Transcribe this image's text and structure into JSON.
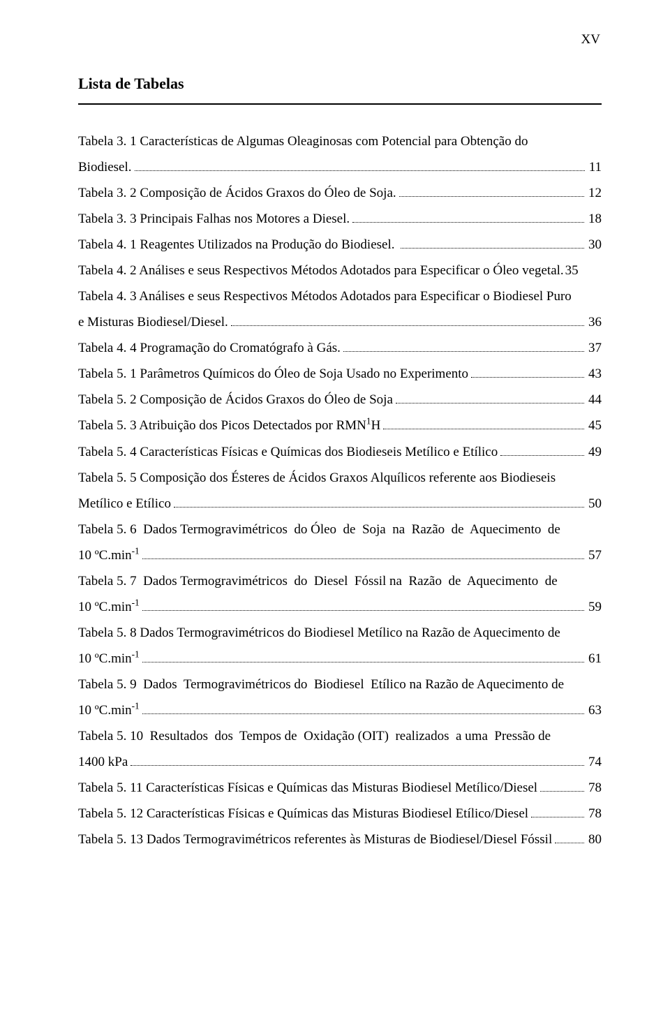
{
  "page_marker": "XV",
  "heading": "Lista de Tabelas",
  "entries": [
    {
      "lines": [
        "Tabela 3. 1 Características de Algumas Oleaginosas com Potencial para Obtenção do",
        "Biodiesel."
      ],
      "page": "11"
    },
    {
      "lines": [
        "Tabela 3. 2 Composição de Ácidos Graxos do Óleo de Soja."
      ],
      "page": "12"
    },
    {
      "lines": [
        "Tabela 3. 3 Principais Falhas nos Motores a Diesel."
      ],
      "page": "18"
    },
    {
      "lines": [
        "Tabela 4. 1 Reagentes Utilizados na Produção do Biodiesel. "
      ],
      "page": "30"
    },
    {
      "lines": [
        "Tabela 4. 2 Análises e seus Respectivos Métodos Adotados para Especificar o Óleo vegetal."
      ],
      "page": "35",
      "no_leader": true
    },
    {
      "lines": [
        "Tabela 4. 3 Análises e seus Respectivos Métodos Adotados para Especificar o Biodiesel Puro",
        "e Misturas Biodiesel/Diesel."
      ],
      "page": "36"
    },
    {
      "lines": [
        "Tabela 4. 4 Programação do Cromatógrafo à Gás."
      ],
      "page": "37"
    },
    {
      "lines": [
        "Tabela 5. 1 Parâmetros Químicos do Óleo de Soja Usado no Experimento"
      ],
      "page": "43"
    },
    {
      "lines": [
        "Tabela 5. 2 Composição de Ácidos Graxos do Óleo de Soja"
      ],
      "page": "44"
    },
    {
      "lines": [
        "Tabela 5. 3 Atribuição dos Picos Detectados por RMN¹H"
      ],
      "page": "45"
    },
    {
      "lines": [
        "Tabela 5. 4 Características Físicas e Químicas dos Biodieseis Metílico e Etílico"
      ],
      "page": "49"
    },
    {
      "lines": [
        "Tabela 5. 5 Composição dos Ésteres de Ácidos Graxos Alquílicos referente aos Biodieseis",
        "Metílico e Etílico"
      ],
      "page": "50"
    },
    {
      "lines": [
        "Tabela 5. 6  Dados Termogravimétricos  do Óleo  de  Soja  na  Razão  de  Aquecimento  de",
        "10 ºC.min⁻¹"
      ],
      "page": "57"
    },
    {
      "lines": [
        "Tabela 5. 7  Dados Termogravimétricos  do  Diesel  Fóssil na  Razão  de  Aquecimento  de",
        "10 ºC.min⁻¹"
      ],
      "page": "59"
    },
    {
      "lines": [
        "Tabela 5. 8 Dados Termogravimétricos do Biodiesel Metílico na Razão de Aquecimento de",
        "10 ºC.min⁻¹"
      ],
      "page": "61"
    },
    {
      "lines": [
        "Tabela 5. 9  Dados  Termogravimétricos do  Biodiesel  Etílico na Razão de Aquecimento de",
        "10 ºC.min⁻¹"
      ],
      "page": "63"
    },
    {
      "lines": [
        "Tabela 5. 10  Resultados  dos  Tempos de  Oxidação (OIT)  realizados  a uma  Pressão de",
        "1400 kPa"
      ],
      "page": "74"
    },
    {
      "lines": [
        "Tabela 5. 11 Características Físicas e Químicas das Misturas Biodiesel Metílico/Diesel"
      ],
      "page": "78"
    },
    {
      "lines": [
        "Tabela 5. 12 Características Físicas e Químicas das Misturas Biodiesel Etílico/Diesel"
      ],
      "page": "78"
    },
    {
      "lines": [
        "Tabela 5. 13 Dados Termogravimétricos referentes às Misturas de Biodiesel/Diesel Fóssil"
      ],
      "page": "80"
    }
  ]
}
